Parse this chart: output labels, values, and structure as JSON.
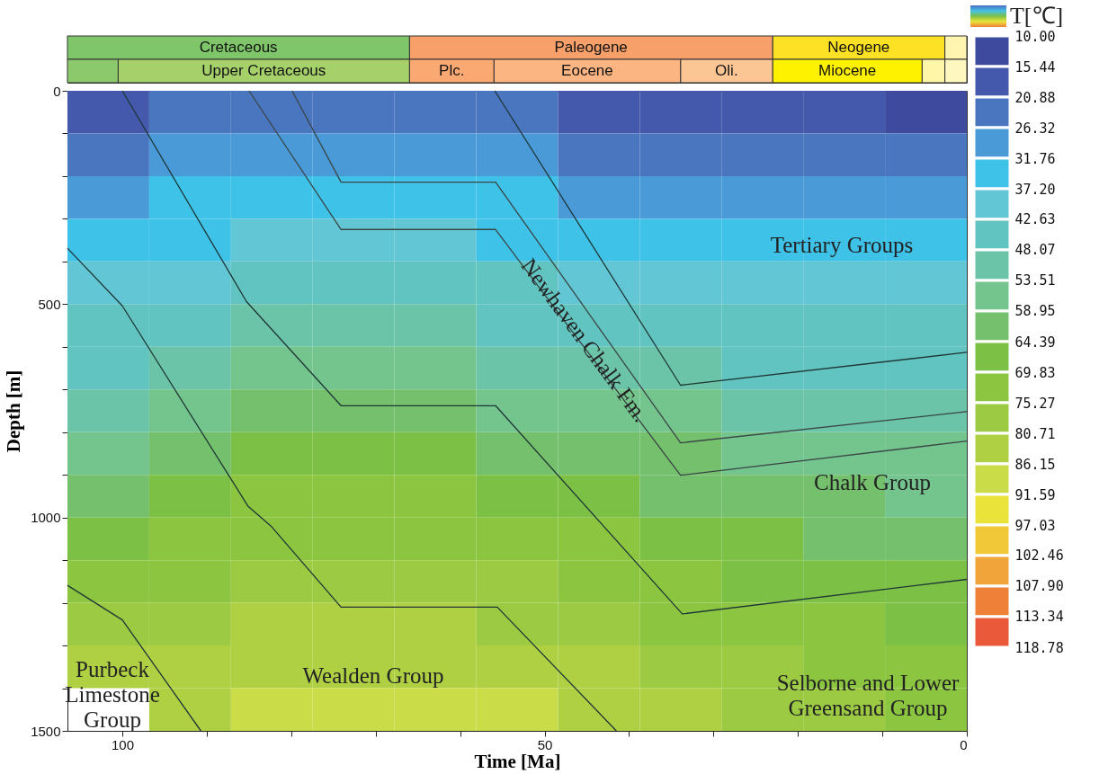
{
  "chart_data": [
    {
      "type": "bar",
      "orientation": "horizontal",
      "stacked": true,
      "categories": [
        null,
        null
      ],
      "xlim": [
        106.5,
        0
      ],
      "tick_labels": false,
      "series": [
        {
          "values": [
            2.6,
            2.6
          ],
          "colors": [
            "#fff5b0",
            "#fff7c0"
          ]
        },
        {
          "values": [
            20.4,
            2.7
          ],
          "colors": [
            "#fde125",
            "#fff6a8"
          ],
          "value_labels": [
            "Neogene",
            null
          ]
        },
        {
          "values": [
            43,
            17.7
          ],
          "colors": [
            "#f7a06a",
            "#fff200"
          ],
          "value_labels": [
            "Paleogene",
            "Miocene"
          ]
        },
        {
          "values": [
            40.5,
            10.9
          ],
          "colors": [
            "#7fc66a",
            "#fcc694"
          ],
          "value_labels": [
            "Cretaceous",
            "Oli."
          ]
        },
        {
          "values": [
            null,
            22.1
          ],
          "colors": [
            null,
            "#fbb582"
          ],
          "value_labels": [
            null,
            "Eocene"
          ]
        },
        {
          "values": [
            null,
            10
          ],
          "colors": [
            null,
            "#fba973"
          ],
          "value_labels": [
            null,
            "Plc."
          ]
        },
        {
          "values": [
            null,
            34.5
          ],
          "colors": [
            null,
            "#a6d16a"
          ],
          "value_labels": [
            null,
            "Upper Cretaceous"
          ]
        },
        {
          "values": [
            null,
            6
          ],
          "colors": [
            null,
            "#8cc96c"
          ]
        }
      ]
    },
    {
      "type": "heatmap",
      "tick_labels": false,
      "clabel": "T[℃]",
      "categories": [
        null,
        null,
        null,
        null,
        null,
        null,
        null,
        null,
        null,
        null,
        null
      ],
      "y_categories": [
        null,
        null,
        null,
        null,
        null,
        null,
        null,
        null,
        null,
        null,
        null,
        null,
        null,
        null,
        null
      ],
      "clim": [
        10,
        118.78
      ],
      "cticks": [
        {
          "value": 10,
          "label": "10.00"
        },
        15.44,
        20.88,
        26.32,
        31.76,
        {
          "value": 37.2,
          "label": "37.20"
        },
        42.63,
        48.07,
        53.51,
        58.95,
        64.39,
        69.83,
        75.27,
        80.71,
        86.15,
        91.59,
        97.03,
        102.46,
        {
          "value": 107.9,
          "label": "107.90"
        },
        113.34,
        118.78
      ],
      "colors": [
        "#3d4a9e",
        "#4459ab",
        "#4a76bf",
        "#4a9ad8",
        "#3fc2e8",
        "#62c6d4",
        "#62c4c0",
        "#6cc4a8",
        "#74c48e",
        "#74c06c",
        "#7cc046",
        "#8cc640",
        "#9cca42",
        "#b0d044",
        "#cadd48",
        "#eae43a",
        "#f0c838",
        "#f0a43a",
        "#ee8038",
        "#ea5a3a"
      ],
      "cells": [
        [
          20,
          21,
          22,
          22,
          22,
          21,
          20,
          19,
          18,
          16,
          14
        ],
        [
          25,
          27,
          28,
          28,
          28,
          27,
          26,
          25,
          24,
          22,
          21
        ],
        [
          30,
          32,
          33,
          33,
          33,
          32,
          31,
          30,
          29,
          28,
          27
        ],
        [
          34,
          37,
          38,
          38,
          38,
          37,
          36,
          35,
          34,
          33,
          33
        ],
        [
          39,
          42,
          44,
          44,
          44,
          43,
          42,
          40,
          39,
          38,
          38
        ],
        [
          44,
          47,
          49,
          49,
          49,
          48,
          47,
          45,
          44,
          43,
          43
        ],
        [
          48,
          51,
          54,
          54,
          54,
          53,
          52,
          49,
          48,
          47,
          47
        ],
        [
          53,
          57,
          59,
          59,
          59,
          58,
          57,
          55,
          53,
          52,
          51
        ],
        [
          58,
          62,
          65,
          65,
          65,
          64,
          63,
          60,
          58,
          56,
          55
        ],
        [
          62,
          66,
          70,
          70,
          70,
          69,
          68,
          64,
          62,
          60,
          58
        ],
        [
          67,
          70,
          74,
          74,
          74,
          73,
          72,
          68,
          65,
          63,
          62
        ],
        [
          71,
          74,
          77,
          77,
          77,
          76,
          75,
          72,
          69,
          67,
          65
        ],
        [
          76,
          78,
          81,
          81,
          81,
          80,
          79,
          75,
          72,
          70,
          68
        ],
        [
          81,
          83,
          85,
          85,
          85,
          84,
          83,
          79,
          76,
          73,
          71
        ],
        [
          null,
          86,
          88,
          88,
          88,
          87,
          86,
          82,
          79,
          76,
          74
        ]
      ]
    },
    {
      "type": "line",
      "xlabel": "Time [Ma]",
      "ylabel": "Depth [m]",
      "xlim": [
        106.5,
        0
      ],
      "ylim": [
        1500,
        0
      ],
      "xticks": [
        100,
        {
          "value": 90,
          "label": null
        },
        {
          "value": 80,
          "label": null
        },
        {
          "value": 70,
          "label": null
        },
        {
          "value": 60,
          "label": null
        },
        50,
        {
          "value": 40,
          "label": null
        },
        {
          "value": 30,
          "label": null
        },
        {
          "value": 20,
          "label": null
        },
        {
          "value": 10,
          "label": null
        },
        0
      ],
      "yticks": [
        0,
        {
          "value": 100,
          "label": null
        },
        {
          "value": 200,
          "label": null
        },
        {
          "value": 300,
          "label": null
        },
        {
          "value": 400,
          "label": null
        },
        500,
        {
          "value": 600,
          "label": null
        },
        {
          "value": 700,
          "label": null
        },
        {
          "value": 800,
          "label": null
        },
        {
          "value": 900,
          "label": null
        },
        1000,
        {
          "value": 1100,
          "label": null
        },
        {
          "value": 1200,
          "label": null
        },
        {
          "value": 1300,
          "label": null
        },
        {
          "value": 1400,
          "label": null
        },
        1500
      ],
      "grid": false,
      "series": [
        {
          "color": "#1e3636",
          "x": [
            100,
            85.3,
            74.1,
            55.8,
            33.7,
            0
          ],
          "values": [
            0,
            494,
            738,
            738,
            1226,
            1145
          ]
        },
        {
          "color": "#1e3636",
          "x": [
            106.5,
            100,
            85.1,
            82.4,
            74.1,
            55.6,
            41.5
          ],
          "values": [
            369,
            504,
            974,
            1020,
            1210,
            1210,
            1500
          ]
        },
        {
          "color": "#1e3636",
          "x": [
            106.5,
            100,
            90.7
          ],
          "values": [
            1159,
            1240,
            1500
          ]
        },
        {
          "color": "#1e3636",
          "x": [
            55.9,
            33.9,
            0
          ],
          "values": [
            0,
            690,
            613
          ]
        },
        {
          "color": "#3a4646",
          "x": [
            79.9,
            74.1,
            55.8,
            33.9,
            0
          ],
          "values": [
            0,
            214,
            214,
            825,
            752
          ]
        },
        {
          "color": "#3a4646",
          "x": [
            85.0,
            74.1,
            55.8,
            33.9,
            0
          ],
          "values": [
            0,
            325,
            325,
            901,
            821
          ]
        }
      ],
      "annotations": [
        "Tertiary Groups",
        "Newhaven Chalk Fm.",
        "Chalk Group",
        "Selborne and Lower\nGreensand Group",
        "Wealden Group",
        "Purbeck\nLimestone\nGroup"
      ]
    }
  ]
}
